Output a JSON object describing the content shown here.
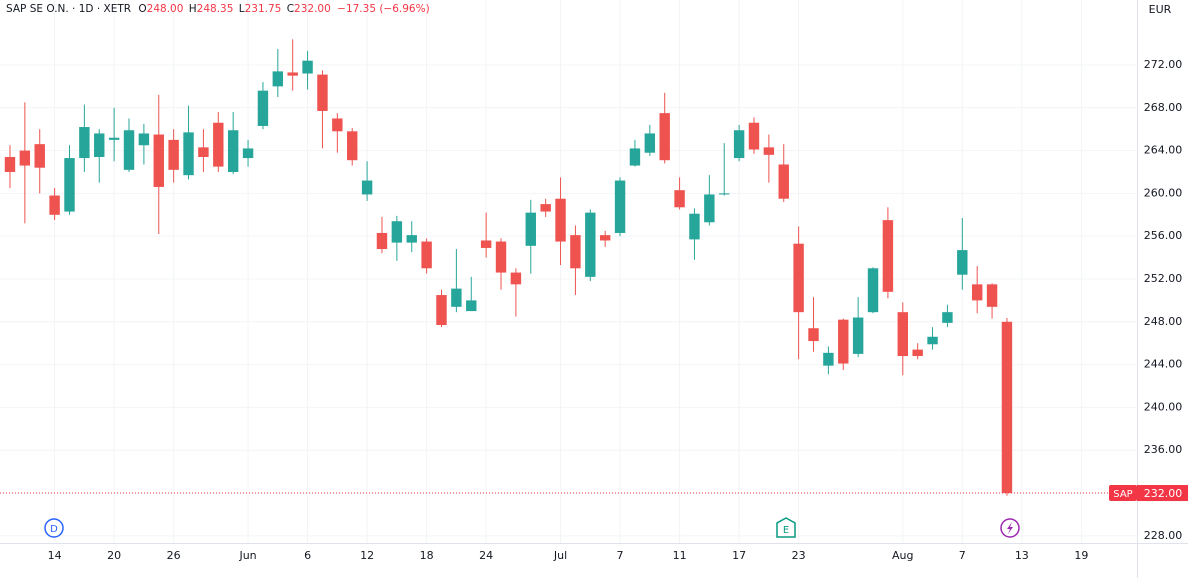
{
  "header": {
    "symbol": "SAP SE O.N. · 1D · XETR",
    "ohlc": [
      {
        "label": "O",
        "value": "248.00"
      },
      {
        "label": "H",
        "value": "248.35"
      },
      {
        "label": "L",
        "value": "231.75"
      },
      {
        "label": "C",
        "value": "232.00"
      }
    ],
    "change": "−17.35 (−6.96%)"
  },
  "events": [
    {
      "label": "D"
    },
    {
      "label": "E"
    }
  ],
  "chart_data": {
    "type": "candlestick",
    "currency": "EUR",
    "up_color": "#26a69a",
    "down_color": "#ef5350",
    "grid": true,
    "open": [
      263.4,
      264.0,
      264.6,
      259.8,
      258.3,
      263.3,
      263.4,
      265.0,
      262.2,
      264.5,
      265.5,
      265.0,
      261.7,
      264.3,
      266.6,
      262.0,
      263.3,
      266.3,
      270.0,
      271.3,
      271.2,
      271.1,
      267.0,
      265.8,
      259.9,
      256.3,
      255.4,
      255.4,
      255.5,
      250.5,
      249.4,
      249.0,
      255.6,
      255.5,
      252.6,
      255.1,
      259.0,
      259.5,
      256.1,
      252.2,
      256.1,
      256.3,
      262.6,
      263.8,
      267.5,
      260.3,
      255.7,
      257.3,
      259.9,
      263.3,
      266.6,
      264.3,
      262.7,
      255.3,
      247.4,
      243.9,
      248.2,
      245.0,
      248.9,
      257.5,
      248.9,
      245.4,
      245.9,
      247.9,
      252.4,
      251.5,
      251.5,
      248.0
    ],
    "high": [
      264.5,
      268.5,
      266,
      260.5,
      264.5,
      268.3,
      266,
      268,
      267,
      266.5,
      269.2,
      266,
      268.2,
      266,
      267.6,
      267.6,
      265,
      270.4,
      273.5,
      274.4,
      273.3,
      271.5,
      267.5,
      266.1,
      263,
      257.8,
      257.9,
      257.4,
      255.8,
      251,
      254.8,
      252.2,
      258.2,
      255.8,
      253,
      259.4,
      259.5,
      261.5,
      257,
      258.5,
      256.5,
      261.5,
      265,
      266.4,
      269.4,
      261.5,
      258.6,
      261.7,
      264.7,
      266.4,
      267.1,
      265.5,
      264.6,
      256.9,
      250.3,
      245.7,
      248.3,
      250.3,
      253.1,
      258.7,
      249.8,
      246,
      247.5,
      249.6,
      257.7,
      253.2,
      251.6,
      248.35
    ],
    "low": [
      260.5,
      257.2,
      260,
      257.5,
      258,
      262,
      261,
      263,
      262,
      262.7,
      256.2,
      261,
      261.3,
      262,
      262,
      261.8,
      262.5,
      266,
      269,
      269.6,
      269.7,
      264.2,
      263.8,
      262.6,
      259.3,
      254.4,
      253.7,
      254.5,
      252.5,
      247.5,
      248.9,
      249,
      254,
      251,
      248.5,
      252.5,
      257.8,
      253.3,
      250.5,
      251.8,
      255,
      256,
      262.5,
      263.5,
      262.8,
      258.5,
      253.8,
      257,
      259.8,
      263,
      263.7,
      261,
      259.2,
      244.5,
      245.2,
      243.1,
      243.5,
      244.7,
      248.8,
      250.2,
      243,
      244.5,
      245.4,
      247.5,
      251,
      248.8,
      248.3,
      231.75
    ],
    "close": [
      262.0,
      262.6,
      262.4,
      258.0,
      263.3,
      266.2,
      265.6,
      265.2,
      265.9,
      265.6,
      260.6,
      262.2,
      265.7,
      263.4,
      262.5,
      265.9,
      264.2,
      269.6,
      271.4,
      271.0,
      272.4,
      267.7,
      265.8,
      263.1,
      261.2,
      254.8,
      257.4,
      256.1,
      253.0,
      247.7,
      251.1,
      250.0,
      254.9,
      252.6,
      251.5,
      258.2,
      258.3,
      255.5,
      253.0,
      258.2,
      255.6,
      261.2,
      264.2,
      265.6,
      263.1,
      258.7,
      258.1,
      259.9,
      260.0,
      265.9,
      264.1,
      263.6,
      259.5,
      248.9,
      246.2,
      245.1,
      244.1,
      248.4,
      253.0,
      250.8,
      244.8,
      244.8,
      246.6,
      248.9,
      254.7,
      250.0,
      249.4,
      232.0
    ],
    "ylim": [
      227.33,
      278.07
    ],
    "yticks": [
      {
        "value": 228,
        "label": "228.00"
      },
      {
        "value": 232,
        "label": "232.00"
      },
      {
        "value": 236,
        "label": "236.00"
      },
      {
        "value": 240,
        "label": "240.00"
      },
      {
        "value": 244,
        "label": "244.00"
      },
      {
        "value": 248,
        "label": "248.00"
      },
      {
        "value": 252,
        "label": "252.00"
      },
      {
        "value": 256,
        "label": "256.00"
      },
      {
        "value": 260,
        "label": "260.00"
      },
      {
        "value": 264,
        "label": "264.00"
      },
      {
        "value": 268,
        "label": "268.00"
      },
      {
        "value": 272,
        "label": "272.00"
      }
    ],
    "xlim": [
      -0.67,
      75.74
    ],
    "xticks": [
      {
        "value": 3,
        "label": "14"
      },
      {
        "value": 7,
        "label": "20"
      },
      {
        "value": 11,
        "label": "26"
      },
      {
        "value": 16,
        "label": "Jun"
      },
      {
        "value": 20,
        "label": "6"
      },
      {
        "value": 24,
        "label": "12"
      },
      {
        "value": 28,
        "label": "18"
      },
      {
        "value": 32,
        "label": "24"
      },
      {
        "value": 37,
        "label": "Jul"
      },
      {
        "value": 41,
        "label": "7"
      },
      {
        "value": 45,
        "label": "11"
      },
      {
        "value": 49,
        "label": "17"
      },
      {
        "value": 53,
        "label": "23"
      },
      {
        "value": 60,
        "label": "Aug"
      },
      {
        "value": 64,
        "label": "7"
      },
      {
        "value": 68,
        "label": "13"
      },
      {
        "value": 72,
        "label": "19"
      }
    ],
    "last_price": {
      "name": "SAP",
      "value": 232,
      "value_label": "232.00",
      "color": "#f23645"
    }
  }
}
